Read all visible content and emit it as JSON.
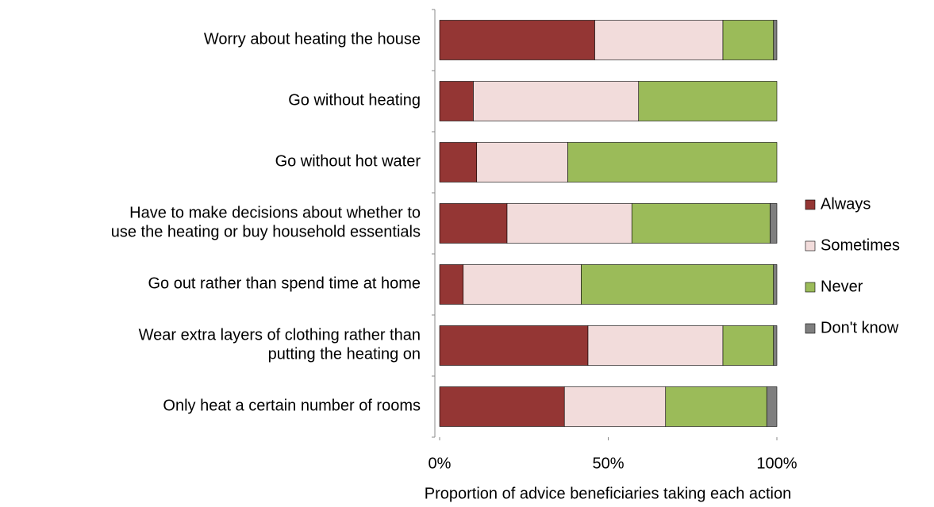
{
  "chart_data": {
    "type": "stacked-bar-horizontal",
    "x_label": "Proportion of advice beneficiaries taking each action",
    "categories": [
      [
        "Worry about heating the house"
      ],
      [
        "Go without heating"
      ],
      [
        "Go without hot water"
      ],
      [
        "Have to make decisions about whether to",
        "use the heating or buy household essentials"
      ],
      [
        "Go out rather than spend time at home"
      ],
      [
        "Wear extra layers of clothing rather than",
        "putting the heating on"
      ],
      [
        "Only heat a certain number of rooms"
      ]
    ],
    "series": [
      {
        "name": "Always",
        "color": "#943634",
        "values": [
          46,
          10,
          11,
          20,
          7,
          44,
          37
        ]
      },
      {
        "name": "Sometimes",
        "color": "#f2dcdb",
        "values": [
          38,
          49,
          27,
          37,
          35,
          40,
          30
        ]
      },
      {
        "name": "Never",
        "color": "#9bbb59",
        "values": [
          15,
          41,
          62,
          41,
          57,
          15,
          30
        ]
      },
      {
        "name": "Don't know",
        "color": "#7f7f7f",
        "values": [
          1,
          0,
          0,
          2,
          1,
          1,
          3
        ]
      }
    ],
    "xlim": [
      0,
      100
    ],
    "xticks": [
      {
        "value": 0,
        "label": "0%"
      },
      {
        "value": 50,
        "label": "50%"
      },
      {
        "value": 100,
        "label": "100%"
      }
    ],
    "legend": "right"
  }
}
